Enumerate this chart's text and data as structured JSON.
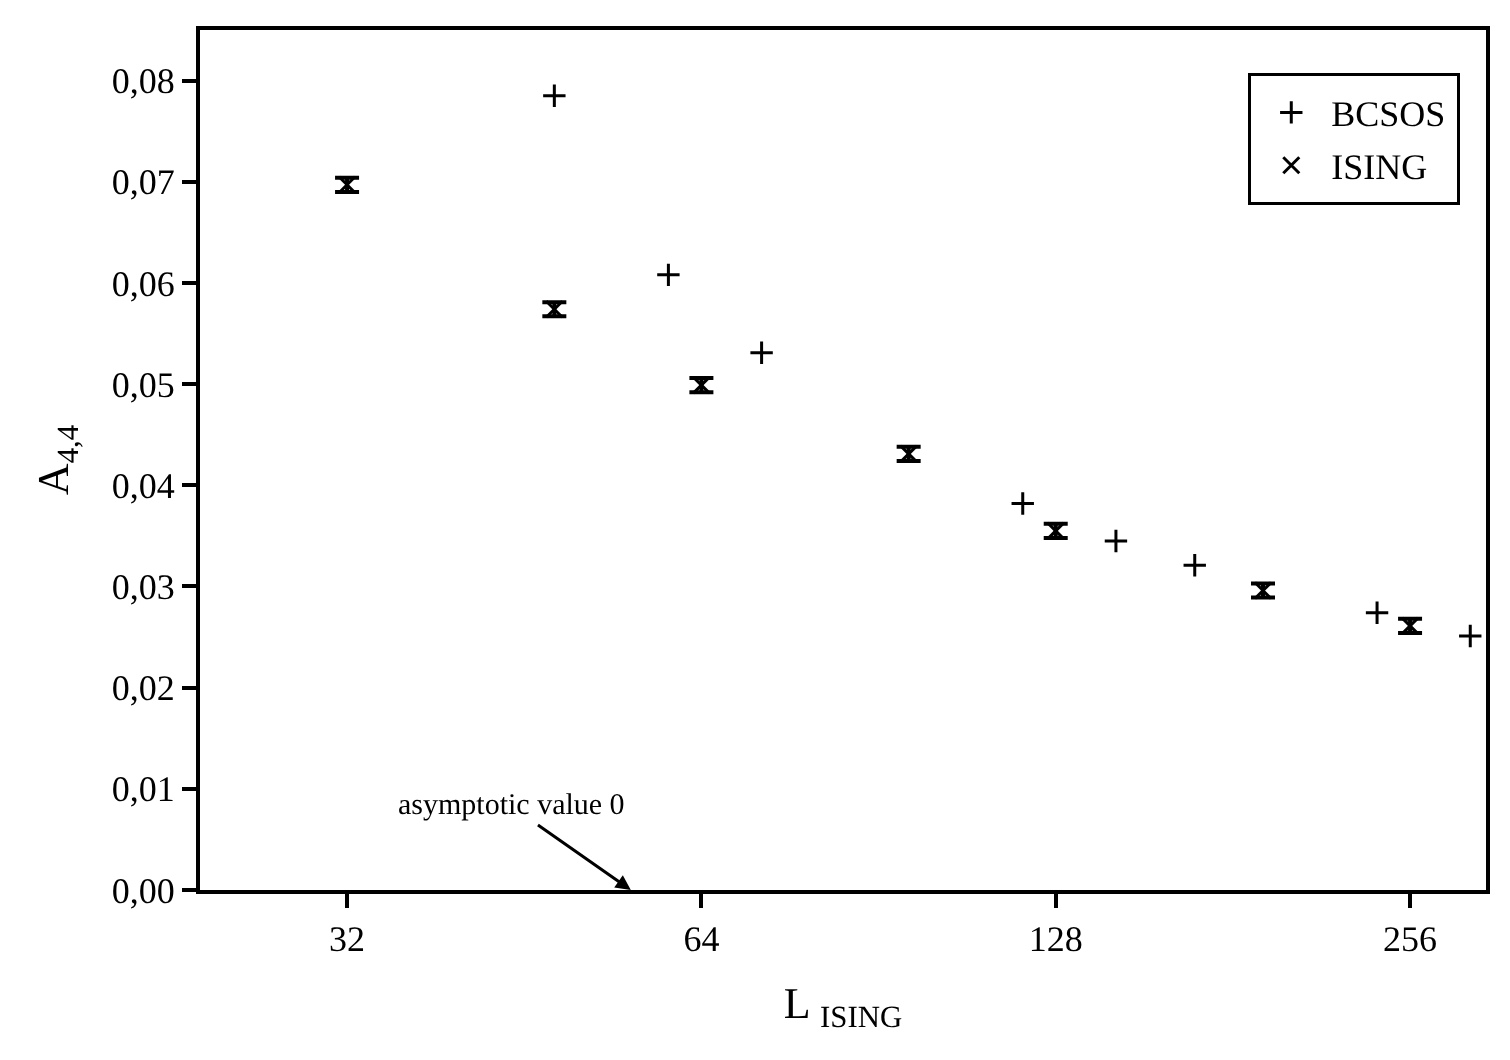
{
  "chart_data": {
    "type": "scatter",
    "xlabel": "L $_{ISING}$",
    "ylabel": "A$_{4,4}$",
    "log": "x",
    "xlim": [
      24,
      297
    ],
    "xticks": [
      32,
      64,
      128,
      256
    ],
    "ylim": [
      0,
      0.085
    ],
    "yticks": [
      {
        "value": 0,
        "label": "0,00"
      },
      {
        "value": 0.01,
        "label": "0,01"
      },
      {
        "value": 0.02,
        "label": "0,02"
      },
      {
        "value": 0.03,
        "label": "0,03"
      },
      {
        "value": 0.04,
        "label": "0,04"
      },
      {
        "value": 0.05,
        "label": "0,05"
      },
      {
        "value": 0.06,
        "label": "0,06"
      },
      {
        "value": 0.07,
        "label": "0,07"
      },
      {
        "value": 0.08,
        "label": "0,08"
      }
    ],
    "legend": "top right",
    "series": [
      {
        "name": "BCSOS",
        "color": "#000000",
        "marker": "cross",
        "x": [
          48,
          60,
          72,
          120,
          144,
          168,
          240,
          288
        ],
        "values": [
          0.0785,
          0.0608,
          0.0531,
          0.0382,
          0.0345,
          0.0321,
          0.0274,
          0.0251
        ]
      },
      {
        "name": "ISING",
        "color": "#000000",
        "marker": "x",
        "x": [
          32,
          48,
          64,
          96,
          128,
          192,
          256
        ],
        "values": [
          0.0697,
          0.0574,
          0.0499,
          0.0431,
          0.0355,
          0.0296,
          0.0261
        ],
        "errors": [
          0.0007,
          0.0007,
          0.0007,
          0.0007,
          0.0007,
          0.0007,
          0.0007
        ]
      }
    ],
    "annotations": [
      "asymptotic value 0"
    ]
  }
}
